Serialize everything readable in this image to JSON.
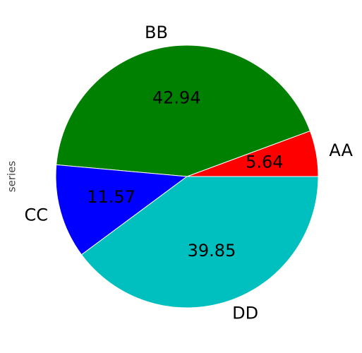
{
  "chart_data": {
    "type": "pie",
    "ylabel": "series",
    "categories": [
      "AA",
      "BB",
      "CC",
      "DD"
    ],
    "values": [
      5.64,
      42.94,
      11.57,
      39.85
    ],
    "colors": [
      "#ff0000",
      "#008000",
      "#0000ff",
      "#00bfbf"
    ],
    "start_angle": 0,
    "counterclock": true
  }
}
